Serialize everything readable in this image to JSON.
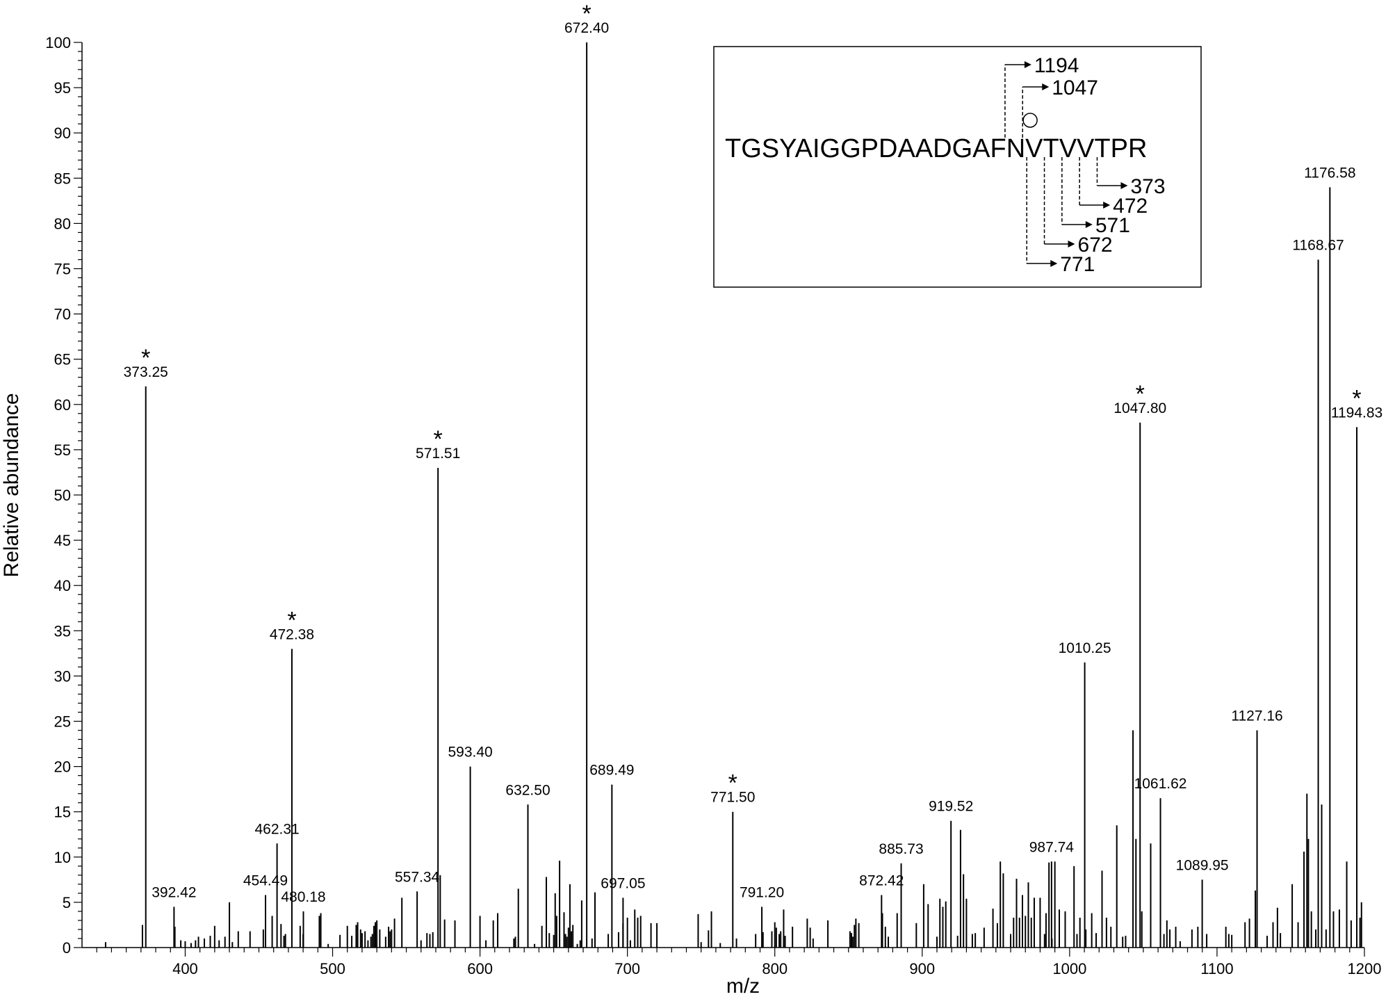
{
  "chart_data": {
    "type": "bar",
    "xlabel": "m/z",
    "ylabel": "Relative abundance",
    "xlim": [
      330,
      1200
    ],
    "ylim": [
      0,
      100
    ],
    "x_ticks": [
      400,
      500,
      600,
      700,
      800,
      900,
      1000,
      1100,
      1200
    ],
    "y_ticks": [
      0,
      5,
      10,
      15,
      20,
      25,
      30,
      35,
      40,
      45,
      50,
      55,
      60,
      65,
      70,
      75,
      80,
      85,
      90,
      95,
      100
    ],
    "grid": false,
    "labeled_peaks": [
      {
        "mz": 373.25,
        "intensity": 62,
        "label": "373.25",
        "starred": true
      },
      {
        "mz": 392.42,
        "intensity": 4.5,
        "label": "392.42",
        "starred": false
      },
      {
        "mz": 454.49,
        "intensity": 5.8,
        "label": "454.49",
        "starred": false
      },
      {
        "mz": 462.31,
        "intensity": 11.5,
        "label": "462.31",
        "starred": false
      },
      {
        "mz": 472.38,
        "intensity": 33,
        "label": "472.38",
        "starred": true
      },
      {
        "mz": 480.18,
        "intensity": 4,
        "label": "480.18",
        "starred": false
      },
      {
        "mz": 557.34,
        "intensity": 6.2,
        "label": "557.34",
        "starred": false
      },
      {
        "mz": 571.51,
        "intensity": 53,
        "label": "571.51",
        "starred": true
      },
      {
        "mz": 593.4,
        "intensity": 20,
        "label": "593.40",
        "starred": false
      },
      {
        "mz": 632.5,
        "intensity": 15.8,
        "label": "632.50",
        "starred": false
      },
      {
        "mz": 672.4,
        "intensity": 100,
        "label": "672.40",
        "starred": true
      },
      {
        "mz": 689.49,
        "intensity": 18,
        "label": "689.49",
        "starred": false
      },
      {
        "mz": 697.05,
        "intensity": 5.5,
        "label": "697.05",
        "starred": false
      },
      {
        "mz": 771.5,
        "intensity": 15,
        "label": "771.50",
        "starred": true
      },
      {
        "mz": 791.2,
        "intensity": 4.5,
        "label": "791.20",
        "starred": false
      },
      {
        "mz": 872.42,
        "intensity": 5.8,
        "label": "872.42",
        "starred": false
      },
      {
        "mz": 885.73,
        "intensity": 9.3,
        "label": "885.73",
        "starred": false
      },
      {
        "mz": 919.52,
        "intensity": 14,
        "label": "919.52",
        "starred": false
      },
      {
        "mz": 987.74,
        "intensity": 9.5,
        "label": "987.74",
        "starred": false
      },
      {
        "mz": 1010.25,
        "intensity": 31.5,
        "label": "1010.25",
        "starred": false
      },
      {
        "mz": 1047.8,
        "intensity": 58,
        "label": "1047.80",
        "starred": true
      },
      {
        "mz": 1061.62,
        "intensity": 16.5,
        "label": "1061.62",
        "starred": false
      },
      {
        "mz": 1089.95,
        "intensity": 7.5,
        "label": "1089.95",
        "starred": false
      },
      {
        "mz": 1127.16,
        "intensity": 24,
        "label": "1127.16",
        "starred": false
      },
      {
        "mz": 1168.67,
        "intensity": 76,
        "label": "1168.67",
        "starred": false
      },
      {
        "mz": 1176.58,
        "intensity": 84,
        "label": "1176.58",
        "starred": false
      },
      {
        "mz": 1194.83,
        "intensity": 57.5,
        "label": "1194.83",
        "starred": true
      }
    ],
    "unlabeled_peaks": [
      [
        346,
        0.6
      ],
      [
        371,
        2.5
      ],
      [
        393,
        2.3
      ],
      [
        397,
        0.8
      ],
      [
        400,
        0.7
      ],
      [
        404,
        0.5
      ],
      [
        407,
        0.8
      ],
      [
        409,
        1.2
      ],
      [
        413,
        1.0
      ],
      [
        417,
        1.3
      ],
      [
        420,
        2.4
      ],
      [
        423,
        0.8
      ],
      [
        427,
        1.2
      ],
      [
        430,
        5.0
      ],
      [
        432,
        0.6
      ],
      [
        436,
        1.8
      ],
      [
        444,
        1.8
      ],
      [
        453,
        2.0
      ],
      [
        459,
        3.5
      ],
      [
        465,
        2.6
      ],
      [
        467,
        1.3
      ],
      [
        468,
        1.5
      ],
      [
        478,
        2.4
      ],
      [
        480,
        1.5
      ],
      [
        491,
        3.5
      ],
      [
        492,
        3.8
      ],
      [
        497,
        0.4
      ],
      [
        505,
        1.4
      ],
      [
        510,
        2.4
      ],
      [
        513,
        1.3
      ],
      [
        516,
        2.5
      ],
      [
        517,
        2.8
      ],
      [
        519,
        2.0
      ],
      [
        520,
        1.6
      ],
      [
        522,
        1.8
      ],
      [
        524,
        0.8
      ],
      [
        526,
        1.2
      ],
      [
        527,
        1.5
      ],
      [
        528,
        2.4
      ],
      [
        529,
        2.8
      ],
      [
        530,
        3.0
      ],
      [
        532,
        2.0
      ],
      [
        536,
        1.2
      ],
      [
        538,
        2.3
      ],
      [
        539,
        1.8
      ],
      [
        540,
        2.0
      ],
      [
        542,
        3.2
      ],
      [
        547,
        5.5
      ],
      [
        560,
        0.8
      ],
      [
        564,
        1.6
      ],
      [
        566,
        1.5
      ],
      [
        568,
        1.7
      ],
      [
        573,
        8.0
      ],
      [
        576,
        3.1
      ],
      [
        583,
        3.0
      ],
      [
        600,
        3.5
      ],
      [
        604,
        0.8
      ],
      [
        609,
        3.0
      ],
      [
        612,
        3.8
      ],
      [
        623,
        1.0
      ],
      [
        624,
        1.2
      ],
      [
        626,
        6.5
      ],
      [
        637,
        0.4
      ],
      [
        642,
        2.4
      ],
      [
        645,
        7.8
      ],
      [
        647,
        1.6
      ],
      [
        650,
        1.4
      ],
      [
        651,
        6.0
      ],
      [
        652,
        3.5
      ],
      [
        654,
        9.6
      ],
      [
        657,
        3.9
      ],
      [
        658,
        1.5
      ],
      [
        659,
        1.2
      ],
      [
        660,
        2.2
      ],
      [
        661,
        7.0
      ],
      [
        662,
        1.8
      ],
      [
        663,
        2.5
      ],
      [
        666,
        0.4
      ],
      [
        668,
        0.8
      ],
      [
        669,
        5.2
      ],
      [
        676,
        1.0
      ],
      [
        678,
        6.1
      ],
      [
        687,
        1.5
      ],
      [
        694,
        1.7
      ],
      [
        697,
        2.7
      ],
      [
        700,
        3.3
      ],
      [
        702,
        0.8
      ],
      [
        705,
        4.2
      ],
      [
        707,
        3.3
      ],
      [
        709,
        3.5
      ],
      [
        716,
        2.7
      ],
      [
        720,
        2.7
      ],
      [
        748,
        3.7
      ],
      [
        750,
        0.6
      ],
      [
        755,
        1.9
      ],
      [
        757,
        4.0
      ],
      [
        763,
        0.5
      ],
      [
        774,
        1.0
      ],
      [
        787,
        1.5
      ],
      [
        792,
        1.7
      ],
      [
        798,
        1.8
      ],
      [
        800,
        2.8
      ],
      [
        801,
        2.2
      ],
      [
        803,
        1.5
      ],
      [
        804,
        1.8
      ],
      [
        806,
        4.2
      ],
      [
        807,
        1.3
      ],
      [
        812,
        2.3
      ],
      [
        822,
        3.2
      ],
      [
        824,
        2.2
      ],
      [
        826,
        1.0
      ],
      [
        836,
        3.0
      ],
      [
        851,
        1.8
      ],
      [
        852,
        1.6
      ],
      [
        853,
        1.2
      ],
      [
        854,
        2.5
      ],
      [
        855,
        3.2
      ],
      [
        857,
        2.7
      ],
      [
        873,
        3.8
      ],
      [
        875,
        2.3
      ],
      [
        877,
        1.2
      ],
      [
        883,
        3.8
      ],
      [
        896,
        2.7
      ],
      [
        901,
        7.0
      ],
      [
        904,
        4.8
      ],
      [
        910,
        1.2
      ],
      [
        912,
        5.4
      ],
      [
        914,
        4.5
      ],
      [
        916,
        5.1
      ],
      [
        924,
        1.3
      ],
      [
        926,
        13.0
      ],
      [
        928,
        8.1
      ],
      [
        930,
        5.4
      ],
      [
        934,
        1.5
      ],
      [
        936,
        1.6
      ],
      [
        942,
        2.2
      ],
      [
        948,
        4.3
      ],
      [
        951,
        2.7
      ],
      [
        953,
        9.5
      ],
      [
        955,
        8.2
      ],
      [
        960,
        1.5
      ],
      [
        962,
        3.3
      ],
      [
        964,
        7.6
      ],
      [
        966,
        3.3
      ],
      [
        968,
        5.8
      ],
      [
        970,
        3.5
      ],
      [
        972,
        7.2
      ],
      [
        974,
        3.3
      ],
      [
        976,
        5.5
      ],
      [
        980,
        5.5
      ],
      [
        983,
        1.5
      ],
      [
        984,
        3.8
      ],
      [
        986,
        9.4
      ],
      [
        988,
        1.0
      ],
      [
        990,
        9.5
      ],
      [
        993,
        4.2
      ],
      [
        997,
        4.0
      ],
      [
        1003,
        9.0
      ],
      [
        1005,
        1.5
      ],
      [
        1007,
        3.3
      ],
      [
        1011,
        2.0
      ],
      [
        1015,
        3.8
      ],
      [
        1018,
        1.6
      ],
      [
        1022,
        8.5
      ],
      [
        1025,
        3.3
      ],
      [
        1028,
        2.3
      ],
      [
        1032,
        13.5
      ],
      [
        1036,
        1.2
      ],
      [
        1038,
        1.3
      ],
      [
        1043,
        24.0
      ],
      [
        1045,
        12.0
      ],
      [
        1049,
        4.0
      ],
      [
        1055,
        11.5
      ],
      [
        1064,
        1.5
      ],
      [
        1066,
        3.0
      ],
      [
        1068,
        2.0
      ],
      [
        1072,
        2.3
      ],
      [
        1075,
        0.7
      ],
      [
        1083,
        2.0
      ],
      [
        1087,
        2.3
      ],
      [
        1093,
        1.5
      ],
      [
        1106,
        2.3
      ],
      [
        1108,
        1.5
      ],
      [
        1110,
        1.4
      ],
      [
        1119,
        2.8
      ],
      [
        1122,
        3.2
      ],
      [
        1126,
        6.3
      ],
      [
        1134,
        1.3
      ],
      [
        1138,
        2.8
      ],
      [
        1141,
        4.4
      ],
      [
        1143,
        1.6
      ],
      [
        1151,
        7.0
      ],
      [
        1155,
        2.8
      ],
      [
        1159,
        10.6
      ],
      [
        1161,
        17.0
      ],
      [
        1162,
        12.0
      ],
      [
        1164,
        4.0
      ],
      [
        1167,
        2.0
      ],
      [
        1171,
        15.8
      ],
      [
        1174,
        2.0
      ],
      [
        1179,
        4.0
      ],
      [
        1183,
        4.2
      ],
      [
        1188,
        9.5
      ],
      [
        1191,
        3.0
      ],
      [
        1197,
        3.3
      ],
      [
        1198,
        5.0
      ]
    ],
    "inset": {
      "sequence": "TGSYAIGGPDAADGAFNVTVVTPR",
      "glyco_marker": "○",
      "n_terminal_ions": [
        {
          "label": "1194"
        },
        {
          "label": "1047"
        }
      ],
      "c_terminal_ions": [
        {
          "label": "373"
        },
        {
          "label": "472"
        },
        {
          "label": "571"
        },
        {
          "label": "672"
        },
        {
          "label": "771"
        }
      ]
    }
  }
}
